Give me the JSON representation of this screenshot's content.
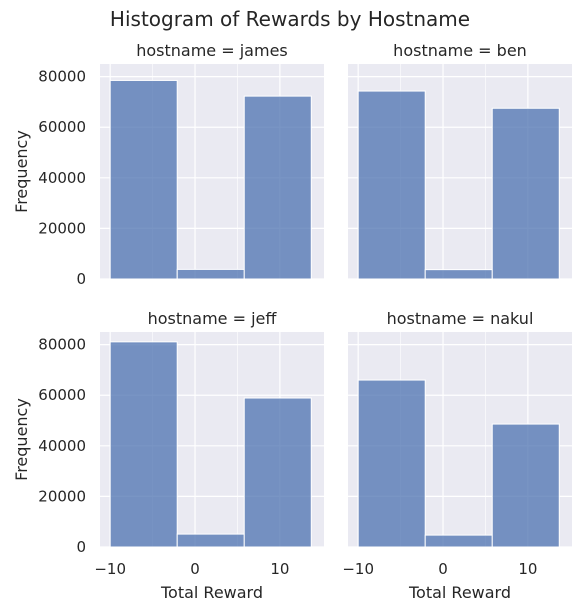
{
  "chart_data": {
    "type": "bar",
    "title": "Histogram of Rewards by Hostname",
    "xlabel": "Total Reward",
    "ylabel": "Frequency",
    "xlim": [
      -11.2,
      15.2
    ],
    "ylim": [
      0,
      85000
    ],
    "xticks": [
      -10,
      0,
      10
    ],
    "yticks": [
      0,
      20000,
      40000,
      60000,
      80000
    ],
    "bin_edges": [
      -10,
      -2.1,
      5.8,
      13.7
    ],
    "grid": true,
    "bar_color": "#4c72b0",
    "panel_bg": "#eaeaf2",
    "grid_color": "#ffffff",
    "panels": [
      {
        "title": "hostname = james",
        "values": [
          78500,
          3800,
          72300
        ]
      },
      {
        "title": "hostname = ben",
        "values": [
          74300,
          3700,
          67500
        ]
      },
      {
        "title": "hostname = jeff",
        "values": [
          81100,
          5100,
          58900
        ]
      },
      {
        "title": "hostname = nakul",
        "values": [
          66000,
          4700,
          48600
        ]
      }
    ]
  }
}
